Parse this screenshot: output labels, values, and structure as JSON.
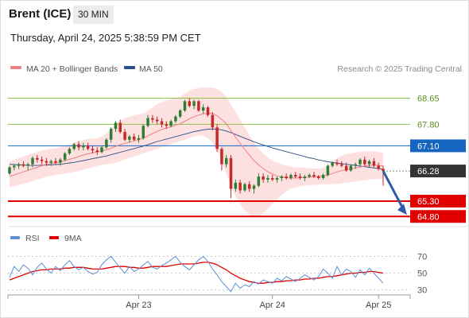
{
  "header": {
    "instrument": "Brent (ICE)",
    "timeframe": "30 MIN",
    "datetime": "Thursday, April 24, 2025 5:38:59 PM CET"
  },
  "legend": {
    "ma20_label": "MA 20 + Bollinger Bands",
    "ma50_label": "MA 50",
    "credit": "Research © 2025 Trading Central",
    "rsi_label": "RSI",
    "rsi_ma_label": "9MA"
  },
  "colors": {
    "candle_up": "#2e7d32",
    "candle_down": "#c62828",
    "ma20": "#f08080",
    "bollinger_fill": "#fde0e0",
    "ma50": "#2c4e8a",
    "resistance": "#8bc34a",
    "pivot": "#1565c0",
    "support": "#e00000",
    "current": "#333333",
    "arrow": "#2c5ba8",
    "rsi": "#5b8fd6",
    "rsi_ma": "#e00000"
  },
  "chart_data": [
    {
      "type": "candlestick",
      "ylim": [
        64.6,
        69.0
      ],
      "x_ticks": [
        "Apr 23",
        "Apr 24",
        "Apr 25"
      ],
      "levels": [
        {
          "label": "68.65",
          "value": 68.65,
          "kind": "resistance"
        },
        {
          "label": "67.80",
          "value": 67.8,
          "kind": "resistance"
        },
        {
          "label": "67.10",
          "value": 67.1,
          "kind": "pivot"
        },
        {
          "label": "66.28",
          "value": 66.28,
          "kind": "current"
        },
        {
          "label": "65.30",
          "value": 65.3,
          "kind": "support"
        },
        {
          "label": "64.80",
          "value": 64.8,
          "kind": "support"
        }
      ],
      "candles": [
        [
          66.2,
          66.45,
          66.15,
          66.4
        ],
        [
          66.4,
          66.5,
          66.3,
          66.45
        ],
        [
          66.45,
          66.55,
          66.35,
          66.5
        ],
        [
          66.5,
          66.6,
          66.4,
          66.45
        ],
        [
          66.45,
          66.55,
          66.3,
          66.5
        ],
        [
          66.5,
          66.75,
          66.4,
          66.7
        ],
        [
          66.7,
          66.8,
          66.55,
          66.65
        ],
        [
          66.65,
          66.75,
          66.5,
          66.6
        ],
        [
          66.6,
          66.7,
          66.45,
          66.55
        ],
        [
          66.55,
          66.65,
          66.45,
          66.6
        ],
        [
          66.6,
          66.7,
          66.5,
          66.55
        ],
        [
          66.55,
          66.7,
          66.45,
          66.65
        ],
        [
          66.65,
          66.9,
          66.6,
          66.85
        ],
        [
          66.85,
          67.05,
          66.8,
          67.0
        ],
        [
          67.0,
          67.2,
          66.95,
          67.15
        ],
        [
          67.15,
          67.25,
          66.95,
          67.05
        ],
        [
          67.05,
          67.2,
          66.95,
          67.1
        ],
        [
          67.1,
          67.2,
          66.95,
          67.0
        ],
        [
          67.0,
          67.1,
          66.85,
          66.95
        ],
        [
          66.95,
          67.05,
          66.8,
          66.9
        ],
        [
          66.9,
          67.1,
          66.85,
          67.05
        ],
        [
          67.05,
          67.35,
          67.0,
          67.3
        ],
        [
          67.3,
          67.7,
          67.2,
          67.65
        ],
        [
          67.65,
          67.9,
          67.55,
          67.85
        ],
        [
          67.85,
          67.95,
          67.5,
          67.55
        ],
        [
          67.55,
          67.65,
          67.25,
          67.3
        ],
        [
          67.3,
          67.45,
          67.2,
          67.4
        ],
        [
          67.4,
          67.5,
          67.25,
          67.3
        ],
        [
          67.3,
          67.45,
          67.2,
          67.35
        ],
        [
          67.35,
          67.8,
          67.3,
          67.75
        ],
        [
          67.75,
          68.1,
          67.7,
          68.0
        ],
        [
          68.0,
          68.1,
          67.85,
          67.95
        ],
        [
          67.95,
          68.05,
          67.8,
          67.9
        ],
        [
          67.9,
          68.0,
          67.7,
          67.8
        ],
        [
          67.8,
          67.9,
          67.65,
          67.75
        ],
        [
          67.75,
          67.95,
          67.7,
          67.9
        ],
        [
          67.9,
          68.1,
          67.85,
          68.05
        ],
        [
          68.05,
          68.3,
          68.0,
          68.25
        ],
        [
          68.25,
          68.6,
          68.2,
          68.55
        ],
        [
          68.55,
          68.65,
          68.35,
          68.4
        ],
        [
          68.4,
          68.6,
          68.3,
          68.55
        ],
        [
          68.55,
          68.6,
          68.2,
          68.25
        ],
        [
          68.25,
          68.45,
          68.15,
          68.35
        ],
        [
          68.35,
          68.4,
          68.05,
          68.1
        ],
        [
          68.1,
          68.2,
          67.6,
          67.7
        ],
        [
          67.7,
          67.8,
          66.9,
          67.0
        ],
        [
          67.0,
          67.05,
          66.3,
          66.5
        ],
        [
          66.5,
          66.8,
          66.4,
          66.7
        ],
        [
          66.7,
          66.8,
          65.4,
          65.7
        ],
        [
          65.7,
          66.0,
          65.6,
          65.9
        ],
        [
          65.9,
          66.0,
          65.55,
          65.65
        ],
        [
          65.65,
          65.9,
          65.6,
          65.85
        ],
        [
          65.85,
          65.95,
          65.6,
          65.7
        ],
        [
          65.7,
          65.85,
          65.55,
          65.8
        ],
        [
          65.8,
          66.2,
          65.75,
          66.1
        ],
        [
          66.1,
          66.2,
          65.9,
          66.0
        ],
        [
          66.0,
          66.15,
          65.9,
          66.05
        ],
        [
          66.05,
          66.15,
          65.95,
          66.0
        ],
        [
          66.0,
          66.1,
          65.9,
          66.05
        ],
        [
          66.05,
          66.15,
          65.95,
          66.1
        ],
        [
          66.1,
          66.2,
          66.0,
          66.05
        ],
        [
          66.05,
          66.2,
          66.0,
          66.15
        ],
        [
          66.15,
          66.25,
          66.05,
          66.1
        ],
        [
          66.1,
          66.2,
          66.0,
          66.05
        ],
        [
          66.05,
          66.15,
          65.95,
          66.1
        ],
        [
          66.1,
          66.2,
          66.05,
          66.15
        ],
        [
          66.15,
          66.25,
          66.05,
          66.1
        ],
        [
          66.1,
          66.15,
          66.0,
          66.05
        ],
        [
          66.05,
          66.2,
          66.0,
          66.15
        ],
        [
          66.15,
          66.5,
          66.1,
          66.45
        ],
        [
          66.45,
          66.6,
          66.4,
          66.55
        ],
        [
          66.55,
          66.65,
          66.45,
          66.5
        ],
        [
          66.5,
          66.6,
          66.4,
          66.45
        ],
        [
          66.45,
          66.55,
          66.25,
          66.3
        ],
        [
          66.3,
          66.5,
          66.25,
          66.45
        ],
        [
          66.45,
          66.55,
          66.35,
          66.5
        ],
        [
          66.5,
          66.7,
          66.45,
          66.65
        ],
        [
          66.65,
          66.75,
          66.45,
          66.5
        ],
        [
          66.5,
          66.65,
          66.4,
          66.6
        ],
        [
          66.6,
          66.7,
          66.4,
          66.45
        ],
        [
          66.45,
          66.55,
          66.3,
          66.35
        ],
        [
          66.35,
          66.45,
          65.8,
          66.28
        ]
      ],
      "ma20": [
        66.1,
        66.15,
        66.2,
        66.25,
        66.3,
        66.35,
        66.4,
        66.45,
        66.5,
        66.52,
        66.55,
        66.58,
        66.62,
        66.66,
        66.7,
        66.75,
        66.8,
        66.84,
        66.87,
        66.9,
        66.93,
        66.97,
        67.02,
        67.08,
        67.14,
        67.18,
        67.22,
        67.26,
        67.3,
        67.35,
        67.42,
        67.5,
        67.57,
        67.63,
        67.68,
        67.72,
        67.77,
        67.82,
        67.9,
        67.98,
        68.05,
        68.1,
        68.14,
        68.16,
        68.15,
        68.08,
        67.96,
        67.82,
        67.6,
        67.38,
        67.18,
        66.98,
        66.8,
        66.62,
        66.48,
        66.36,
        66.26,
        66.18,
        66.12,
        66.08,
        66.06,
        66.05,
        66.05,
        66.06,
        66.07,
        66.08,
        66.09,
        66.1,
        66.12,
        66.15,
        66.2,
        66.25,
        66.29,
        66.32,
        66.35,
        66.38,
        66.41,
        66.44,
        66.46,
        66.47,
        66.46,
        66.44
      ],
      "ma50": [
        66.5,
        66.49,
        66.48,
        66.47,
        66.46,
        66.46,
        66.46,
        66.47,
        66.47,
        66.48,
        66.49,
        66.5,
        66.52,
        66.54,
        66.56,
        66.59,
        66.62,
        66.65,
        66.68,
        66.71,
        66.74,
        66.77,
        66.81,
        66.85,
        66.89,
        66.93,
        66.97,
        67.01,
        67.05,
        67.09,
        67.14,
        67.19,
        67.24,
        67.28,
        67.32,
        67.36,
        67.4,
        67.44,
        67.48,
        67.52,
        67.56,
        67.59,
        67.62,
        67.64,
        67.65,
        67.64,
        67.62,
        67.58,
        67.53,
        67.47,
        67.41,
        67.35,
        67.29,
        67.23,
        67.18,
        67.13,
        67.08,
        67.03,
        66.99,
        66.95,
        66.91,
        66.87,
        66.83,
        66.79,
        66.75,
        66.71,
        66.68,
        66.64,
        66.61,
        66.58,
        66.56,
        66.54,
        66.52,
        66.5,
        66.48,
        66.46,
        66.44,
        66.42,
        66.4,
        66.38,
        66.36,
        66.34
      ],
      "bollinger_upper": [
        66.6,
        66.65,
        66.7,
        66.75,
        66.8,
        66.85,
        66.9,
        66.95,
        66.98,
        67.0,
        67.02,
        67.05,
        67.1,
        67.15,
        67.2,
        67.25,
        67.3,
        67.32,
        67.33,
        67.35,
        67.4,
        67.5,
        67.65,
        67.8,
        67.92,
        68.0,
        68.05,
        68.1,
        68.12,
        68.15,
        68.25,
        68.35,
        68.45,
        68.52,
        68.58,
        68.62,
        68.66,
        68.7,
        68.8,
        68.9,
        68.95,
        68.98,
        69.0,
        69.0,
        68.99,
        68.95,
        68.85,
        68.7,
        68.45,
        68.2,
        67.95,
        67.7,
        67.45,
        67.2,
        67.0,
        66.85,
        66.72,
        66.62,
        66.55,
        66.5,
        66.46,
        66.42,
        66.4,
        66.39,
        66.38,
        66.37,
        66.36,
        66.36,
        66.38,
        66.45,
        66.58,
        66.7,
        66.78,
        66.83,
        66.86,
        66.88,
        66.9,
        66.92,
        66.93,
        66.92,
        66.9,
        66.85
      ],
      "bollinger_lower": [
        65.75,
        65.78,
        65.82,
        65.86,
        65.9,
        65.95,
        66.0,
        66.05,
        66.1,
        66.12,
        66.15,
        66.18,
        66.2,
        66.22,
        66.25,
        66.28,
        66.32,
        66.36,
        66.4,
        66.45,
        66.48,
        66.5,
        66.52,
        66.55,
        66.6,
        66.65,
        66.7,
        66.75,
        66.8,
        66.85,
        66.9,
        66.95,
        67.0,
        67.05,
        67.1,
        67.15,
        67.2,
        67.25,
        67.3,
        67.35,
        67.4,
        67.45,
        67.42,
        67.35,
        67.2,
        66.95,
        66.6,
        66.2,
        65.8,
        65.45,
        65.2,
        65.0,
        64.85,
        64.78,
        64.8,
        64.9,
        65.05,
        65.2,
        65.35,
        65.5,
        65.62,
        65.7,
        65.75,
        65.78,
        65.8,
        65.82,
        65.83,
        65.84,
        65.85,
        65.85,
        65.85,
        65.86,
        65.88,
        65.9,
        65.92,
        65.94,
        65.96,
        65.98,
        66.0,
        66.02,
        66.02,
        66.03
      ]
    },
    {
      "type": "line",
      "ylim": [
        25,
        80
      ],
      "y_ticks": [
        70,
        50,
        30
      ],
      "x_ticks": [
        "Apr 23",
        "Apr 24",
        "Apr 25"
      ],
      "series": [
        {
          "name": "RSI",
          "values": [
            45,
            58,
            52,
            60,
            56,
            48,
            57,
            62,
            55,
            50,
            58,
            53,
            60,
            65,
            58,
            54,
            57,
            52,
            49,
            51,
            60,
            66,
            70,
            63,
            56,
            50,
            58,
            52,
            55,
            60,
            64,
            57,
            55,
            59,
            62,
            66,
            70,
            63,
            58,
            54,
            60,
            66,
            70,
            64,
            55,
            48,
            40,
            34,
            28,
            38,
            32,
            36,
            34,
            40,
            37,
            42,
            40,
            38,
            44,
            41,
            46,
            43,
            40,
            44,
            48,
            45,
            42,
            46,
            55,
            50,
            44,
            58,
            48,
            55,
            52,
            45,
            54,
            48,
            56,
            50,
            44,
            38
          ]
        },
        {
          "name": "9MA",
          "values": [
            42,
            44,
            46,
            48,
            50,
            52,
            53,
            54,
            54,
            55,
            55,
            55,
            56,
            56,
            57,
            57,
            57,
            56,
            55,
            55,
            55,
            56,
            57,
            58,
            58,
            58,
            57,
            57,
            56,
            56,
            57,
            58,
            58,
            58,
            58,
            59,
            60,
            61,
            61,
            61,
            61,
            62,
            63,
            63,
            62,
            60,
            57,
            54,
            50,
            47,
            44,
            42,
            40,
            39,
            38,
            38,
            39,
            39,
            40,
            40,
            41,
            41,
            42,
            42,
            43,
            43,
            44,
            44,
            45,
            46,
            46,
            47,
            48,
            49,
            50,
            50,
            51,
            51,
            52,
            52,
            51,
            50
          ]
        }
      ]
    }
  ]
}
